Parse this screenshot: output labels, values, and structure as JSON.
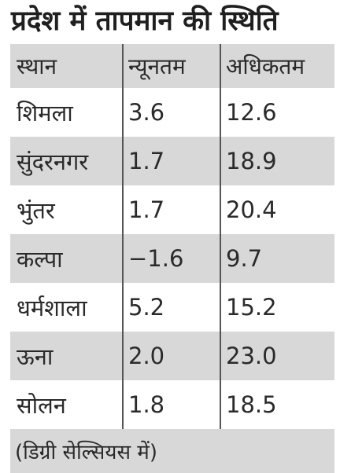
{
  "title": "प्रदेश में तापमान की स्थिति",
  "table": {
    "headers": [
      "स्थान",
      "न्यूनतम",
      "अधिकतम"
    ],
    "rows": [
      [
        "शिमला",
        "3.6",
        "12.6"
      ],
      [
        "सुंदरनगर",
        "1.7",
        "18.9"
      ],
      [
        "भुंतर",
        "1.7",
        "20.4"
      ],
      [
        "कल्पा",
        "−1.6",
        "9.7"
      ],
      [
        "धर्मशाला",
        "5.2",
        "15.2"
      ],
      [
        "ऊना",
        "2.0",
        "23.0"
      ],
      [
        "सोलन",
        "1.8",
        "18.5"
      ]
    ]
  },
  "footnote": "(डिग्री सेल्सियस में)",
  "colors": {
    "shade": "#d8d8d8",
    "text": "#2a2a2a"
  }
}
